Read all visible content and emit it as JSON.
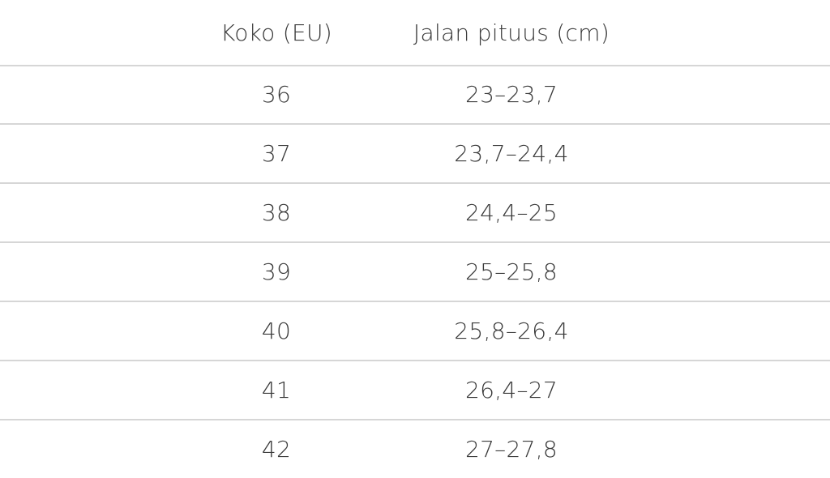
{
  "table": {
    "headers": [
      "Koko (EU)",
      "Jalan pituus (cm)"
    ],
    "rows": [
      [
        "36",
        "23–23,7"
      ],
      [
        "37",
        "23,7–24,4"
      ],
      [
        "38",
        "24,4–25"
      ],
      [
        "39",
        "25–25,8"
      ],
      [
        "40",
        "25,8–26,4"
      ],
      [
        "41",
        "26,4–27"
      ],
      [
        "42",
        "27–27,8"
      ]
    ]
  }
}
